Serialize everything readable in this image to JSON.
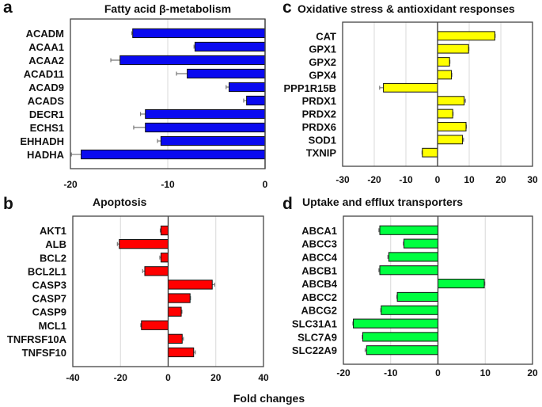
{
  "xlabel": "Fold changes",
  "chart_data": [
    {
      "panel": "a",
      "type": "bar",
      "orientation": "horizontal",
      "title": "Fatty acid β-metabolism",
      "categories": [
        "ACADM",
        "ACAA1",
        "ACAA2",
        "ACAD11",
        "ACAD9",
        "ACADS",
        "DECR1",
        "ECHS1",
        "EHHADH",
        "HADHA"
      ],
      "values": [
        -13.6,
        -7.2,
        -14.9,
        -8.0,
        -3.7,
        -1.9,
        -12.3,
        -12.3,
        -10.7,
        -18.9
      ],
      "errors": [
        0.1,
        0.1,
        0.95,
        1.1,
        0.3,
        0.3,
        0.5,
        1.2,
        0.35,
        1.0
      ],
      "xlim": [
        -20,
        0
      ],
      "xticks": [
        "-20",
        "-10",
        "0"
      ],
      "grid": true,
      "color": "#0a0af0"
    },
    {
      "panel": "b",
      "type": "bar",
      "orientation": "horizontal",
      "title": "Apoptosis",
      "categories": [
        "AKT1",
        "ALB",
        "BCL2",
        "BCL2L1",
        "CASP3",
        "CASP7",
        "CASP9",
        "MCL1",
        "TNFRSF10A",
        "TNFSF10"
      ],
      "values": [
        -3.0,
        -20.5,
        -3.0,
        -9.8,
        18.5,
        9.2,
        5.5,
        -11.2,
        5.9,
        10.7
      ],
      "errors": [
        0.3,
        0.8,
        0.5,
        0.9,
        1.0,
        0.2,
        0.3,
        0.3,
        0.5,
        0.7
      ],
      "xlim": [
        -40,
        40
      ],
      "xticks": [
        "-40",
        "-20",
        "0",
        "20",
        "40"
      ],
      "grid": true,
      "color": "#ff0000"
    },
    {
      "panel": "c",
      "type": "bar",
      "orientation": "horizontal",
      "title": "Oxidative stress & antioxidant responses",
      "categories": [
        "CAT",
        "GPX1",
        "GPX2",
        "GPX4",
        "PPP1R15B",
        "PRDX1",
        "PRDX2",
        "PRDX6",
        "SOD1",
        "TXNIP"
      ],
      "values": [
        18.1,
        9.8,
        3.8,
        4.4,
        -17.1,
        8.4,
        4.8,
        9.0,
        7.9,
        -4.8
      ],
      "errors": [
        0.1,
        0.1,
        0.1,
        0.1,
        1.2,
        0.4,
        0.1,
        0.1,
        0.3,
        0.1
      ],
      "xlim": [
        -30,
        30
      ],
      "xticks": [
        "-30",
        "-20",
        "-10",
        "0",
        "10",
        "20",
        "30"
      ],
      "grid": true,
      "color": "#ffff00"
    },
    {
      "panel": "d",
      "type": "bar",
      "orientation": "horizontal",
      "title": "Uptake and efflux transporters",
      "categories": [
        "ABCA1",
        "ABCC3",
        "ABCC4",
        "ABCB1",
        "ABCB4",
        "ABCC2",
        "ABCG2",
        "SLC31A1",
        "SLC7A9",
        "SLC22A9"
      ],
      "values": [
        -12.3,
        -7.2,
        -10.4,
        -12.3,
        9.8,
        -8.6,
        -12.0,
        -17.9,
        -15.9,
        -15.1
      ],
      "errors": [
        0.2,
        0.1,
        0.2,
        0.2,
        0.1,
        0.1,
        0.1,
        0.1,
        0.1,
        0.3
      ],
      "xlim": [
        -20,
        20
      ],
      "xticks": [
        "-20",
        "-10",
        "0",
        "10",
        "20"
      ],
      "grid": true,
      "color": "#00ff40"
    }
  ]
}
